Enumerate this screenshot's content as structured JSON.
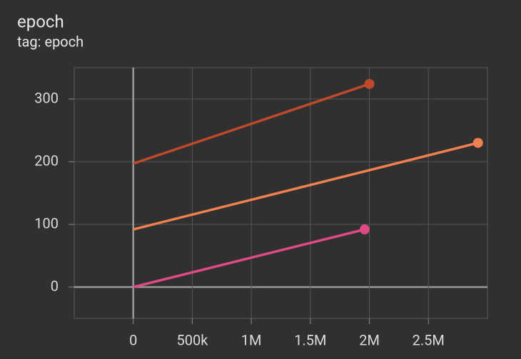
{
  "chart_data": {
    "type": "line",
    "title": "epoch",
    "subtitle": "tag: epoch",
    "xlim": [
      -500000,
      3000000
    ],
    "xticks": [
      0,
      {
        "value": 500000,
        "label": "500k"
      },
      {
        "value": 1000000,
        "label": "1M"
      },
      {
        "value": 1500000,
        "label": "1.5M"
      },
      {
        "value": 2000000,
        "label": "2M"
      },
      {
        "value": 2500000,
        "label": "2.5M"
      }
    ],
    "ylim": [
      -50,
      350
    ],
    "yticks": [
      0,
      100,
      200,
      300
    ],
    "grid": true,
    "series": [
      {
        "color": "#c0492c",
        "x": [
          0,
          2000000
        ],
        "values": [
          197,
          324
        ]
      },
      {
        "color": "#f0804f",
        "x": [
          0,
          2920000
        ],
        "values": [
          92,
          230
        ]
      },
      {
        "color": "#dd4a84",
        "x": [
          0,
          1960000
        ],
        "values": [
          0,
          92
        ]
      }
    ]
  }
}
